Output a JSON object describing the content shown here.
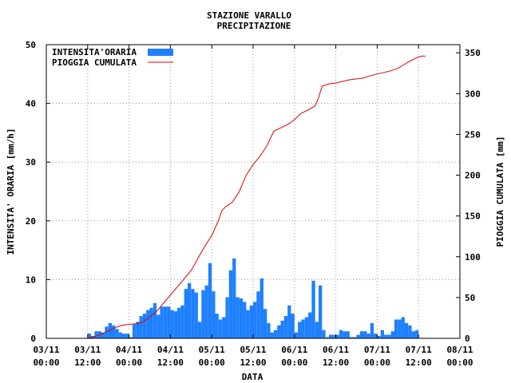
{
  "chart_data": {
    "type": "bar",
    "title": "STAZIONE VARALLO",
    "subtitle": "PRECIPITAZIONE",
    "xlabel": "DATA",
    "ylabel_left": "INTENSITA' ORARIA [mm/h]",
    "ylabel_right": "PIOGGIA CUMULATA [mm]",
    "grid": true,
    "legend_position": "top-left",
    "x_unit": "hours from 03/11 00:00",
    "xlim": [
      0,
      120
    ],
    "ylim_left": [
      0,
      50
    ],
    "ylim_right": [
      0,
      360
    ],
    "x_ticks": [
      {
        "x": 0,
        "label": [
          "03/11",
          "00:00"
        ]
      },
      {
        "x": 12,
        "label": [
          "03/11",
          "12:00"
        ]
      },
      {
        "x": 24,
        "label": [
          "04/11",
          "00:00"
        ]
      },
      {
        "x": 36,
        "label": [
          "04/11",
          "12:00"
        ]
      },
      {
        "x": 48,
        "label": [
          "05/11",
          "00:00"
        ]
      },
      {
        "x": 60,
        "label": [
          "05/11",
          "12:00"
        ]
      },
      {
        "x": 72,
        "label": [
          "06/11",
          "00:00"
        ]
      },
      {
        "x": 84,
        "label": [
          "06/11",
          "12:00"
        ]
      },
      {
        "x": 96,
        "label": [
          "07/11",
          "00:00"
        ]
      },
      {
        "x": 108,
        "label": [
          "07/11",
          "12:00"
        ]
      },
      {
        "x": 120,
        "label": [
          "08/11",
          "00:00"
        ]
      }
    ],
    "y_ticks_left": [
      "0",
      "10",
      "20",
      "30",
      "40",
      "50"
    ],
    "y_ticks_left_values": [
      0,
      10,
      20,
      30,
      40,
      50
    ],
    "y_ticks_right": [
      "0",
      "50",
      "100",
      "150",
      "200",
      "250",
      "300",
      "350"
    ],
    "y_ticks_right_values": [
      0,
      50,
      100,
      150,
      200,
      250,
      300,
      350
    ],
    "series": [
      {
        "name": "INTENSITA'ORARIA",
        "type": "bar",
        "axis": "left",
        "color": "#1e80ff",
        "x_start": 12,
        "values": [
          0.8,
          0.4,
          1.2,
          1.2,
          1.0,
          2.0,
          2.6,
          2.2,
          1.6,
          1.0,
          0.8,
          0.8,
          0.2,
          2.4,
          2.8,
          3.8,
          4.2,
          4.8,
          5.2,
          6.0,
          4.0,
          5.4,
          5.4,
          5.4,
          4.8,
          4.6,
          5.2,
          5.6,
          8.4,
          9.4,
          8.4,
          7.8,
          2.8,
          8.2,
          9.0,
          12.8,
          8.0,
          4.2,
          3.2,
          3.6,
          7.0,
          11.6,
          13.6,
          7.0,
          6.8,
          6.2,
          4.8,
          5.6,
          6.2,
          8.0,
          10.2,
          5.0,
          2.6,
          1.0,
          1.4,
          2.2,
          3.0,
          3.8,
          5.6,
          4.2,
          1.0,
          2.8,
          3.2,
          3.6,
          4.4,
          9.8,
          2.8,
          9.0,
          1.4,
          0.2,
          0.6,
          0.6,
          0.6,
          1.4,
          1.2,
          1.2,
          0.2,
          0.2,
          0.6,
          1.2,
          1.2,
          0.8,
          2.6,
          0.8,
          0.4,
          1.4,
          0.6,
          0.6,
          1.2,
          3.2,
          3.2,
          3.6,
          2.6,
          2.2,
          1.2,
          1.4
        ]
      },
      {
        "name": "PIOGGIA CUMULATA",
        "type": "line",
        "axis": "right",
        "color": "#dd0000",
        "points": [
          [
            12,
            0
          ],
          [
            14,
            2
          ],
          [
            16,
            5
          ],
          [
            18,
            9
          ],
          [
            20,
            13
          ],
          [
            22,
            16
          ],
          [
            24,
            17
          ],
          [
            26,
            18
          ],
          [
            28,
            20
          ],
          [
            30,
            26
          ],
          [
            32,
            33
          ],
          [
            34,
            43
          ],
          [
            36,
            53
          ],
          [
            38,
            63
          ],
          [
            40,
            73
          ],
          [
            42,
            83
          ],
          [
            44,
            98
          ],
          [
            46,
            113
          ],
          [
            48,
            126
          ],
          [
            50,
            145
          ],
          [
            51,
            157
          ],
          [
            52,
            161
          ],
          [
            54,
            167
          ],
          [
            56,
            180
          ],
          [
            58,
            200
          ],
          [
            60,
            213
          ],
          [
            62,
            223
          ],
          [
            64,
            236
          ],
          [
            66,
            254
          ],
          [
            68,
            258
          ],
          [
            70,
            262
          ],
          [
            72,
            268
          ],
          [
            74,
            276
          ],
          [
            76,
            280
          ],
          [
            78,
            285
          ],
          [
            79,
            295
          ],
          [
            80,
            309
          ],
          [
            82,
            312
          ],
          [
            84,
            313
          ],
          [
            86,
            315
          ],
          [
            88,
            317
          ],
          [
            90,
            318
          ],
          [
            92,
            319
          ],
          [
            94,
            322
          ],
          [
            96,
            324
          ],
          [
            98,
            326
          ],
          [
            100,
            328
          ],
          [
            102,
            331
          ],
          [
            104,
            336
          ],
          [
            106,
            341
          ],
          [
            108,
            345
          ],
          [
            109,
            346
          ],
          [
            110,
            346
          ]
        ]
      }
    ]
  }
}
